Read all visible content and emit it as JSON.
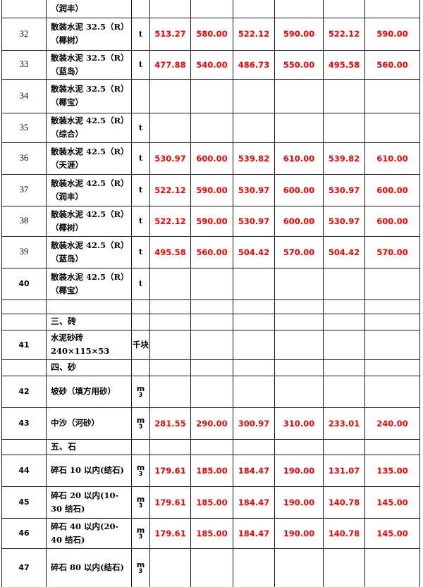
{
  "document": {
    "kind": "materials-price-table-page",
    "price_color": "#ff0000",
    "grid_color": "#1c1c1c"
  },
  "table": {
    "rows": [
      {
        "kind": "continuation",
        "name": "（润丰）"
      },
      {
        "kind": "item",
        "no": "32",
        "spec": "散装水泥 32.5（R）",
        "brand": "（椰树）",
        "unit": "t",
        "bold_no": false,
        "prices": [
          "513.27",
          "580.00",
          "522.12",
          "590.00",
          "522.12",
          "590.00"
        ]
      },
      {
        "kind": "item",
        "no": "33",
        "spec": "散装水泥 32.5（R）",
        "brand": "（蓝岛）",
        "unit": "t",
        "bold_no": false,
        "prices": [
          "477.88",
          "540.00",
          "486.73",
          "550.00",
          "495.58",
          "560.00"
        ]
      },
      {
        "kind": "item",
        "no": "34",
        "spec": "散装水泥 32.5（R）",
        "brand": "（椰宝）",
        "unit": "",
        "bold_no": false,
        "prices": []
      },
      {
        "kind": "item",
        "no": "35",
        "spec": "散装水泥 42.5（R）",
        "brand": "（综合）",
        "unit": "t",
        "bold_no": false,
        "prices": []
      },
      {
        "kind": "item",
        "no": "36",
        "spec": "散装水泥 42.5（R）",
        "brand": "（天涯）",
        "unit": "t",
        "bold_no": false,
        "prices": [
          "530.97",
          "600.00",
          "539.82",
          "610.00",
          "539.82",
          "610.00"
        ]
      },
      {
        "kind": "item",
        "no": "37",
        "spec": "散装水泥 42.5（R）",
        "brand": "（润丰）",
        "unit": "t",
        "bold_no": false,
        "prices": [
          "522.12",
          "590.00",
          "530.97",
          "600.00",
          "530.97",
          "600.00"
        ]
      },
      {
        "kind": "item",
        "no": "38",
        "spec": "散装水泥 42.5（R）",
        "brand": "（椰树）",
        "unit": "t",
        "bold_no": false,
        "prices": [
          "522.12",
          "590.00",
          "530.97",
          "600.00",
          "530.97",
          "600.00"
        ]
      },
      {
        "kind": "item",
        "no": "39",
        "spec": "散装水泥 42.5（R）",
        "brand": "（蓝岛）",
        "unit": "t",
        "bold_no": false,
        "prices": [
          "495.58",
          "560.00",
          "504.42",
          "570.00",
          "504.42",
          "570.00"
        ]
      },
      {
        "kind": "item",
        "no": "40",
        "spec": "散装水泥 42.5（R）",
        "brand": "（椰宝）",
        "unit": "t",
        "bold_no": true,
        "prices": []
      },
      {
        "kind": "empty"
      },
      {
        "kind": "section",
        "label": "三、砖"
      },
      {
        "kind": "item",
        "no": "41",
        "spec": "水泥砂砖 240×115×53",
        "brand": "",
        "unit": "千块",
        "bold_no": true,
        "prices": []
      },
      {
        "kind": "section",
        "label": "四、砂"
      },
      {
        "kind": "item",
        "no": "42",
        "spec": "坡砂（填方用砂）",
        "brand": "",
        "unit": "m³",
        "bold_no": true,
        "prices": []
      },
      {
        "kind": "item",
        "no": "43",
        "spec": "中沙（河砂）",
        "brand": "",
        "unit": "m³",
        "bold_no": true,
        "prices": [
          "281.55",
          "290.00",
          "300.97",
          "310.00",
          "233.01",
          "240.00"
        ]
      },
      {
        "kind": "section",
        "label": "五、石"
      },
      {
        "kind": "item",
        "no": "44",
        "spec": "碎石 10 以内(结石)",
        "brand": "",
        "unit": "m³",
        "bold_no": true,
        "prices": [
          "179.61",
          "185.00",
          "184.47",
          "190.00",
          "131.07",
          "135.00"
        ]
      },
      {
        "kind": "item",
        "no": "45",
        "spec": "碎石 20 以内(10-30 结石)",
        "brand": "",
        "unit": "m³",
        "bold_no": true,
        "prices": [
          "179.61",
          "185.00",
          "184.47",
          "190.00",
          "140.78",
          "145.00"
        ]
      },
      {
        "kind": "item",
        "no": "46",
        "spec": "碎石 40 以内(20-40 结石)",
        "brand": "",
        "unit": "m³",
        "bold_no": true,
        "prices": [
          "179.61",
          "185.00",
          "184.47",
          "190.00",
          "140.78",
          "145.00"
        ]
      },
      {
        "kind": "item",
        "no": "47",
        "spec": "碎石 80 以内(结石)",
        "brand": "",
        "unit": "m³",
        "bold_no": true,
        "prices": []
      }
    ]
  }
}
